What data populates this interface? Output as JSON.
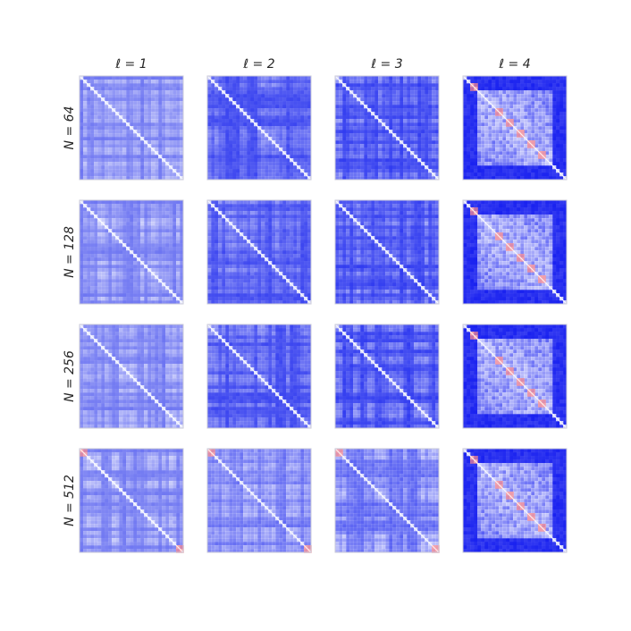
{
  "figure": {
    "columns": [
      "ℓ = 1",
      "ℓ = 2",
      "ℓ = 3",
      "ℓ = 4"
    ],
    "rows": [
      "N = 64",
      "N = 128",
      "N = 256",
      "N = 512"
    ]
  }
}
